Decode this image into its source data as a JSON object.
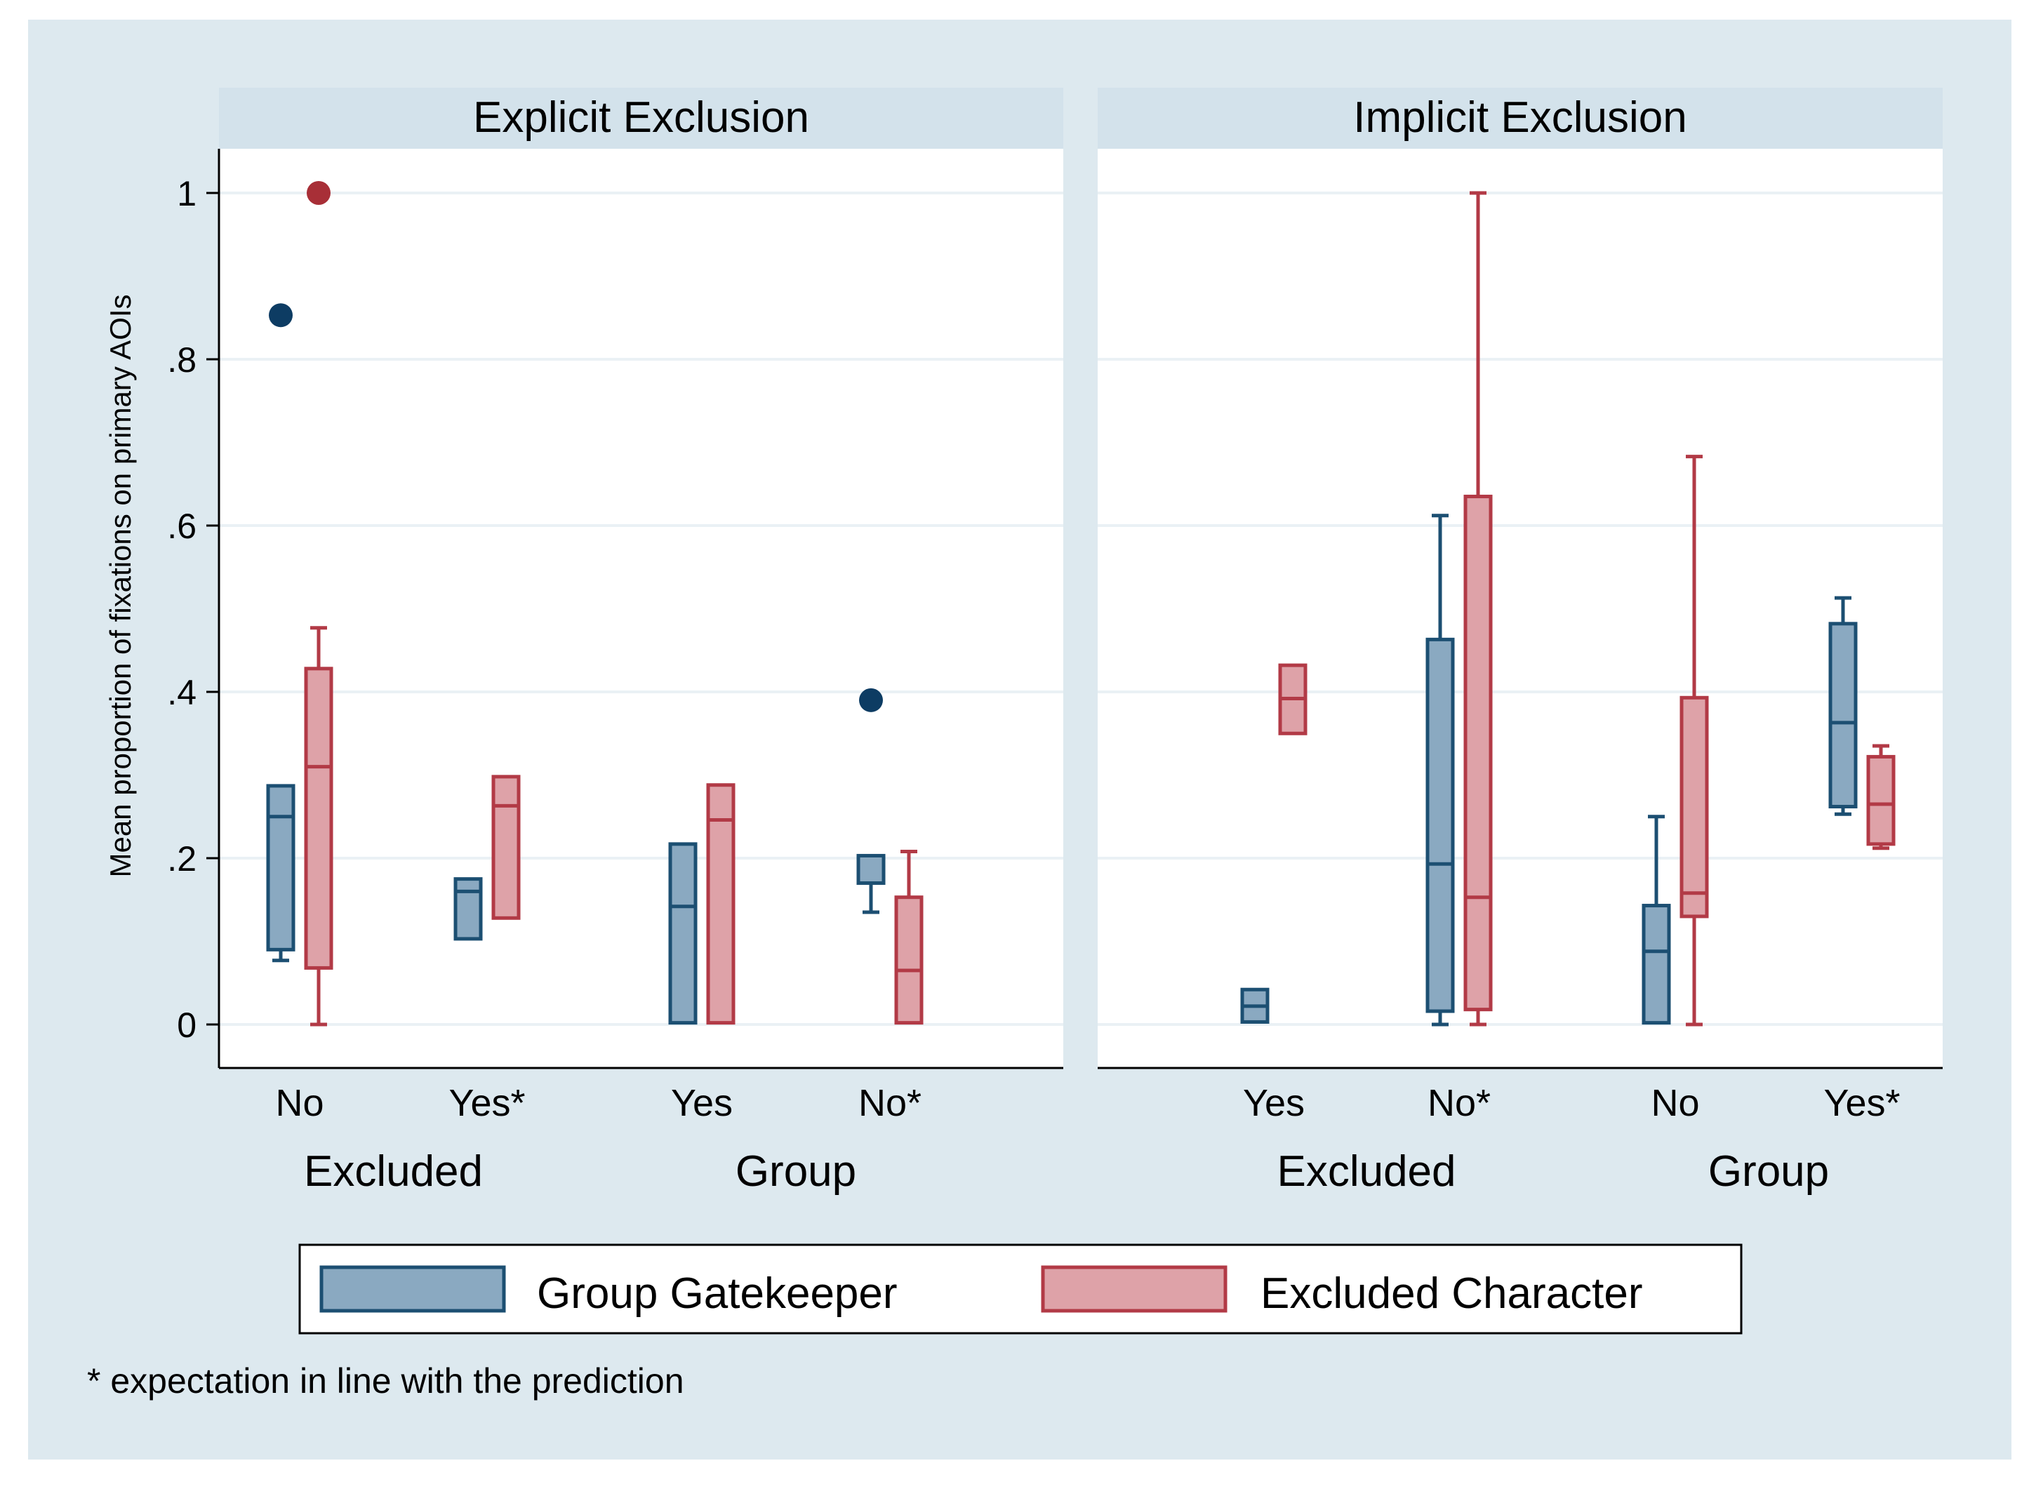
{
  "chart_data": {
    "type": "box",
    "ylabel": "Mean proportion of fixations on primary AOIs",
    "ylim": [
      0,
      1
    ],
    "yticks": [
      {
        "value": 0,
        "label": "0"
      },
      {
        "value": 0.2,
        "label": ".2"
      },
      {
        "value": 0.4,
        "label": ".4"
      },
      {
        "value": 0.6,
        "label": ".6"
      },
      {
        "value": 0.8,
        "label": ".8"
      },
      {
        "value": 1,
        "label": "1"
      }
    ],
    "grid": true,
    "colors": {
      "background": "#dde9ef",
      "strip": "#d3e2eb",
      "gridline": "#eaf1f5",
      "gatekeeper_fill": "#8aa9c1",
      "gatekeeper_line": "#1c4f72",
      "excluded_fill": "#dea2a8",
      "excluded_line": "#b23a46",
      "outlier_blue": "#0d3c63",
      "outlier_red": "#a82f37"
    },
    "series": [
      {
        "name": "Group Gatekeeper",
        "key": "gatekeeper"
      },
      {
        "name": "Excluded Character",
        "key": "excluded"
      }
    ],
    "legend": {
      "position": "bottom",
      "items": [
        "Group Gatekeeper",
        "Excluded Character"
      ]
    },
    "note": "* expectation in line with the prediction",
    "panels": [
      {
        "title": "Explicit Exclusion",
        "groups": [
          {
            "label": "Excluded",
            "categories": [
              {
                "label": "No",
                "boxes": [
                  {
                    "series": "gatekeeper",
                    "whisker_low": 0.077,
                    "q1": 0.09,
                    "median": 0.25,
                    "q3": 0.287,
                    "whisker_high": 0.287,
                    "outliers": [
                      0.853
                    ]
                  },
                  {
                    "series": "excluded",
                    "whisker_low": 0.0,
                    "q1": 0.068,
                    "median": 0.31,
                    "q3": 0.428,
                    "whisker_high": 0.477,
                    "outliers": [
                      1.0
                    ]
                  }
                ]
              },
              {
                "label": "Yes*",
                "boxes": [
                  {
                    "series": "gatekeeper",
                    "whisker_low": 0.103,
                    "q1": 0.103,
                    "median": 0.16,
                    "q3": 0.175,
                    "whisker_high": 0.175,
                    "outliers": []
                  },
                  {
                    "series": "excluded",
                    "whisker_low": 0.128,
                    "q1": 0.128,
                    "median": 0.263,
                    "q3": 0.298,
                    "whisker_high": 0.298,
                    "outliers": []
                  }
                ]
              }
            ]
          },
          {
            "label": "Group",
            "categories": [
              {
                "label": "Yes",
                "boxes": [
                  {
                    "series": "gatekeeper",
                    "whisker_low": 0.002,
                    "q1": 0.002,
                    "median": 0.142,
                    "q3": 0.217,
                    "whisker_high": 0.217,
                    "outliers": []
                  },
                  {
                    "series": "excluded",
                    "whisker_low": 0.002,
                    "q1": 0.002,
                    "median": 0.246,
                    "q3": 0.288,
                    "whisker_high": 0.288,
                    "outliers": []
                  }
                ]
              },
              {
                "label": "No*",
                "boxes": [
                  {
                    "series": "gatekeeper",
                    "whisker_low": 0.135,
                    "q1": 0.17,
                    "median": 0.17,
                    "q3": 0.203,
                    "whisker_high": 0.203,
                    "outliers": [
                      0.39
                    ]
                  },
                  {
                    "series": "excluded",
                    "whisker_low": 0.002,
                    "q1": 0.002,
                    "median": 0.065,
                    "q3": 0.153,
                    "whisker_high": 0.208,
                    "outliers": []
                  }
                ]
              }
            ]
          }
        ]
      },
      {
        "title": "Implicit Exclusion",
        "groups": [
          {
            "label": "Excluded",
            "categories": [
              {
                "label": "Yes",
                "boxes": [
                  {
                    "series": "gatekeeper",
                    "whisker_low": 0.003,
                    "q1": 0.003,
                    "median": 0.022,
                    "q3": 0.042,
                    "whisker_high": 0.042,
                    "outliers": []
                  },
                  {
                    "series": "excluded",
                    "whisker_low": 0.35,
                    "q1": 0.35,
                    "median": 0.392,
                    "q3": 0.432,
                    "whisker_high": 0.432,
                    "outliers": []
                  }
                ]
              },
              {
                "label": "No*",
                "boxes": [
                  {
                    "series": "gatekeeper",
                    "whisker_low": 0.0,
                    "q1": 0.016,
                    "median": 0.193,
                    "q3": 0.463,
                    "whisker_high": 0.612,
                    "outliers": []
                  },
                  {
                    "series": "excluded",
                    "whisker_low": 0.0,
                    "q1": 0.018,
                    "median": 0.153,
                    "q3": 0.635,
                    "whisker_high": 1.0,
                    "outliers": []
                  }
                ]
              }
            ]
          },
          {
            "label": "Group",
            "categories": [
              {
                "label": "No",
                "boxes": [
                  {
                    "series": "gatekeeper",
                    "whisker_low": 0.002,
                    "q1": 0.002,
                    "median": 0.088,
                    "q3": 0.143,
                    "whisker_high": 0.25,
                    "outliers": []
                  },
                  {
                    "series": "excluded",
                    "whisker_low": 0.0,
                    "q1": 0.13,
                    "median": 0.158,
                    "q3": 0.393,
                    "whisker_high": 0.683,
                    "outliers": []
                  }
                ]
              },
              {
                "label": "Yes*",
                "boxes": [
                  {
                    "series": "gatekeeper",
                    "whisker_low": 0.253,
                    "q1": 0.262,
                    "median": 0.363,
                    "q3": 0.482,
                    "whisker_high": 0.513,
                    "outliers": []
                  },
                  {
                    "series": "excluded",
                    "whisker_low": 0.212,
                    "q1": 0.217,
                    "median": 0.265,
                    "q3": 0.322,
                    "whisker_high": 0.335,
                    "outliers": []
                  }
                ]
              }
            ]
          }
        ]
      }
    ]
  }
}
